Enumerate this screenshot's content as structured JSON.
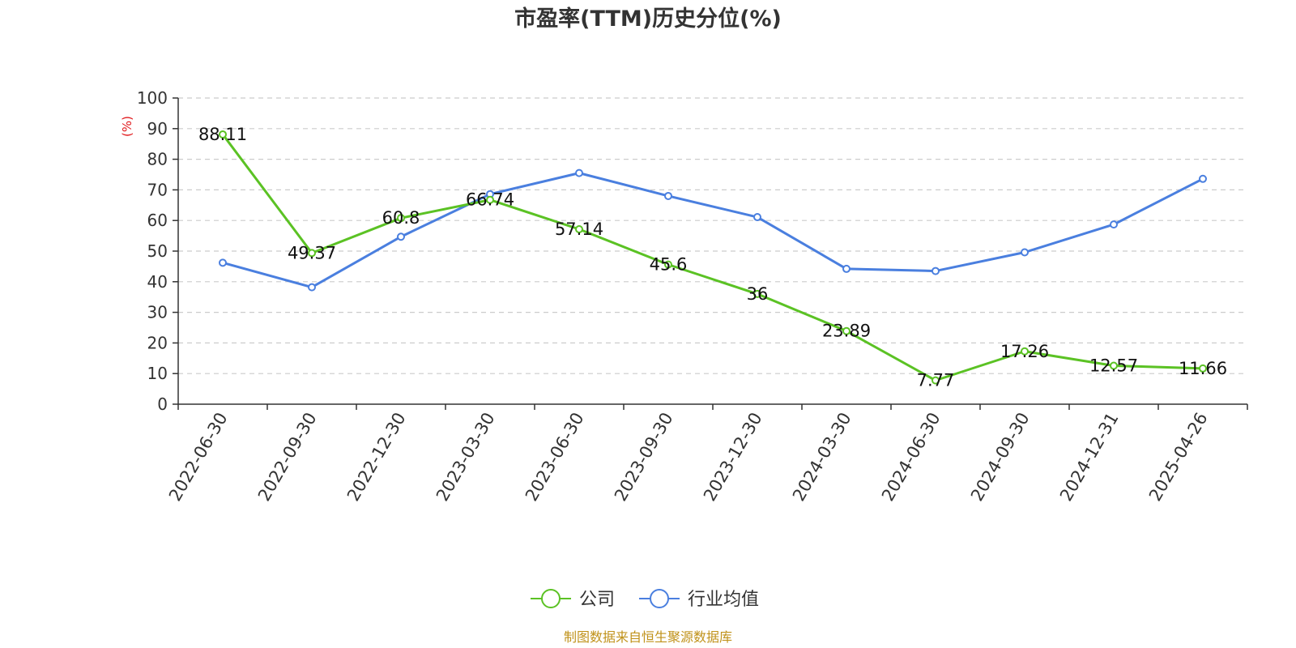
{
  "chart_data": {
    "type": "line",
    "title": "市盈率(TTM)历史分位(%)",
    "ylabel": "(%)",
    "ylim": [
      0,
      100
    ],
    "yticks": [
      0,
      10,
      20,
      30,
      40,
      50,
      60,
      70,
      80,
      90,
      100
    ],
    "categories": [
      "2022-06-30",
      "2022-09-30",
      "2022-12-30",
      "2023-03-30",
      "2023-06-30",
      "2023-09-30",
      "2023-12-30",
      "2024-03-30",
      "2024-06-30",
      "2024-09-30",
      "2024-12-31",
      "2025-04-26"
    ],
    "grid": true,
    "legend_position": "bottom",
    "series": [
      {
        "name": "公司",
        "color": "#5bc224",
        "values": [
          88.11,
          49.37,
          60.8,
          66.74,
          57.14,
          45.6,
          36,
          23.89,
          7.77,
          17.26,
          12.57,
          11.66
        ],
        "labels": [
          "88.11",
          "49.37",
          "60.8",
          "66.74",
          "57.14",
          "45.6",
          "36",
          "23.89",
          "7.77",
          "17.26",
          "12.57",
          "11.66"
        ]
      },
      {
        "name": "行业均值",
        "color": "#4a7fdf",
        "values": [
          46.2,
          38.2,
          54.7,
          68.6,
          75.5,
          68.0,
          61.1,
          44.2,
          43.5,
          49.6,
          58.7,
          73.6
        ]
      }
    ],
    "source": "制图数据来自恒生聚源数据库",
    "source_color": "#c0921a",
    "unit_color": "#e0191c",
    "axis_color": "#333333",
    "grid_color": "#cccccc"
  }
}
